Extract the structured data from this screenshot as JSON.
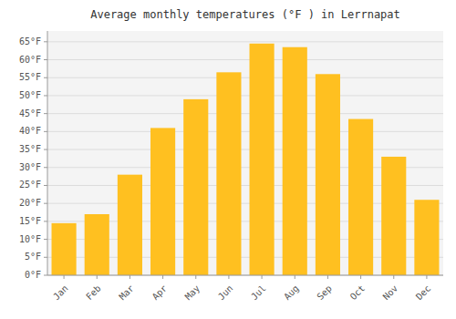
{
  "chart_data": {
    "type": "bar",
    "title": "Average monthly temperatures (°F ) in Lerrnapat",
    "categories": [
      "Jan",
      "Feb",
      "Mar",
      "Apr",
      "May",
      "Jun",
      "Jul",
      "Aug",
      "Sep",
      "Oct",
      "Nov",
      "Dec"
    ],
    "values": [
      14.5,
      17.0,
      28.0,
      41.0,
      49.0,
      56.5,
      64.5,
      63.5,
      56.0,
      43.5,
      33.0,
      21.0
    ],
    "color": "#FFC020",
    "ylim": [
      0,
      68
    ],
    "yticks": [
      {
        "value": 0,
        "label": "0°F"
      },
      {
        "value": 5,
        "label": "5°F"
      },
      {
        "value": 10,
        "label": "10°F"
      },
      {
        "value": 15,
        "label": "15°F"
      },
      {
        "value": 20,
        "label": "20°F"
      },
      {
        "value": 25,
        "label": "25°F"
      },
      {
        "value": 30,
        "label": "30°F"
      },
      {
        "value": 35,
        "label": "35°F"
      },
      {
        "value": 40,
        "label": "40°F"
      },
      {
        "value": 45,
        "label": "45°F"
      },
      {
        "value": 50,
        "label": "50°F"
      },
      {
        "value": 55,
        "label": "55°F"
      },
      {
        "value": 60,
        "label": "60°F"
      },
      {
        "value": 65,
        "label": "65°F"
      }
    ],
    "grid": true
  }
}
